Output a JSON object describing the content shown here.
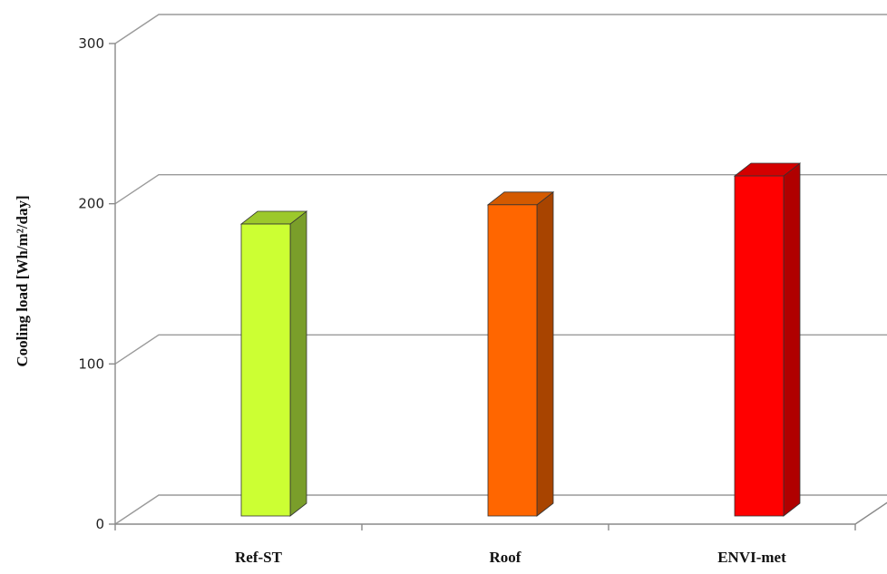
{
  "chart_data": {
    "type": "bar",
    "categories": [
      "Ref-ST",
      "Roof",
      "ENVI-met"
    ],
    "values": [
      193,
      205,
      223
    ],
    "ylabel": "Cooling load [Wh/m²/day]",
    "ylim": [
      0,
      300
    ],
    "yticks": [
      0,
      100,
      200,
      300
    ],
    "grid": true,
    "colors": {
      "front": [
        "#ccff33",
        "#ff6600",
        "#ff0000"
      ],
      "side": [
        "#7a9e2a",
        "#a84400",
        "#b00000"
      ],
      "top": [
        "#9cc82b",
        "#d45a00",
        "#d40000"
      ]
    }
  }
}
